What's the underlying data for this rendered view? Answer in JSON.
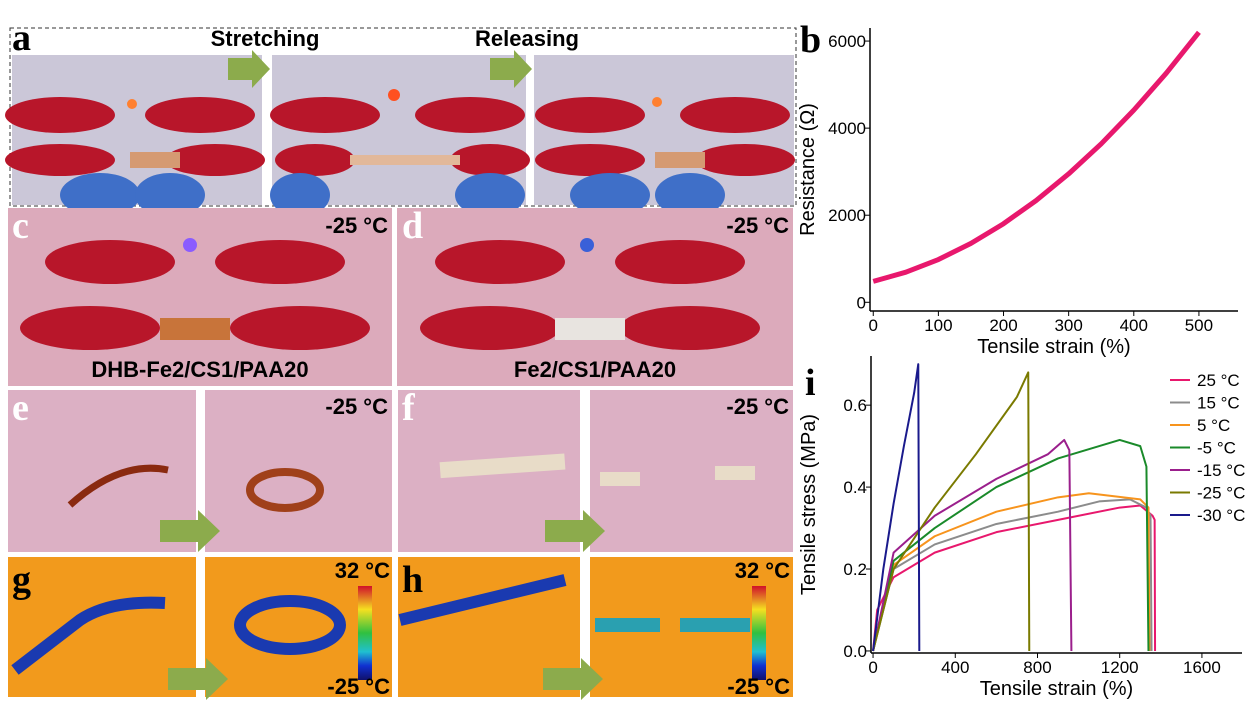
{
  "panels": {
    "a": {
      "label": "a",
      "steps": [
        "Stretching",
        "Releasing"
      ]
    },
    "b": {
      "label": "b"
    },
    "c": {
      "label": "c",
      "temperature": "-25 °C",
      "caption": "DHB-Fe2/CS1/PAA20"
    },
    "d": {
      "label": "d",
      "temperature": "-25 °C",
      "caption": "Fe2/CS1/PAA20"
    },
    "e": {
      "label": "e",
      "temperature": "-25 °C"
    },
    "f": {
      "label": "f",
      "temperature": "-25 °C"
    },
    "g": {
      "label": "g",
      "scale_max": "32 °C",
      "scale_min": "-25 °C"
    },
    "h": {
      "label": "h",
      "scale_max": "32 °C",
      "scale_min": "-25 °C"
    },
    "i": {
      "label": "i"
    }
  },
  "chart_data": [
    {
      "type": "line",
      "x_label": "Tensile strain (%)",
      "y_label": "Resistance (Ω)",
      "xlim": [
        -5,
        560
      ],
      "ylim": [
        -200,
        6300
      ],
      "xticks": [
        0,
        100,
        200,
        300,
        400,
        500
      ],
      "yticks": [
        0,
        2000,
        4000,
        6000
      ],
      "series": [
        {
          "color": "#e8186d",
          "x": [
            0,
            50,
            100,
            150,
            200,
            250,
            300,
            350,
            400,
            450,
            500
          ],
          "values": [
            480,
            691,
            982,
            1353,
            1805,
            2337,
            2950,
            3640,
            4413,
            5265,
            6200
          ]
        }
      ]
    },
    {
      "type": "line",
      "x_label": "Tensile strain (%)",
      "y_label": "Tensile stress (MPa)",
      "xlim": [
        -10,
        1795
      ],
      "ylim": [
        -0.005,
        0.72
      ],
      "xticks": [
        0,
        400,
        800,
        1200,
        1600
      ],
      "yticks": [
        {
          "value": 0,
          "label": "0.0"
        },
        0.2,
        0.4,
        0.6
      ],
      "legend": "upper right",
      "series": [
        {
          "name": "25 °C",
          "color": "#e8186d",
          "x": [
            0,
            20,
            100,
            300,
            600,
            900,
            1200,
            1300,
            1360,
            1370,
            1372
          ],
          "values": [
            0,
            0.1,
            0.18,
            0.24,
            0.29,
            0.32,
            0.35,
            0.355,
            0.33,
            0.32,
            0
          ]
        },
        {
          "name": "15 °C",
          "color": "#8c8c8c",
          "x": [
            0,
            100,
            300,
            600,
            900,
            1100,
            1250,
            1330,
            1350,
            1355
          ],
          "values": [
            0,
            0.2,
            0.26,
            0.31,
            0.34,
            0.365,
            0.37,
            0.35,
            0.33,
            0
          ]
        },
        {
          "name": "5 °C",
          "color": "#f7941d",
          "x": [
            0,
            100,
            300,
            600,
            900,
            1050,
            1300,
            1340,
            1345
          ],
          "values": [
            0,
            0.21,
            0.28,
            0.34,
            0.375,
            0.385,
            0.37,
            0.35,
            0
          ]
        },
        {
          "name": "-5 °C",
          "color": "#1a8a2a",
          "x": [
            0,
            100,
            300,
            600,
            900,
            1200,
            1300,
            1330,
            1340
          ],
          "values": [
            0,
            0.22,
            0.3,
            0.4,
            0.47,
            0.515,
            0.5,
            0.45,
            0
          ]
        },
        {
          "name": "-15 °C",
          "color": "#9b1f8c",
          "x": [
            0,
            100,
            300,
            600,
            850,
            930,
            955,
            965
          ],
          "values": [
            0,
            0.24,
            0.33,
            0.42,
            0.48,
            0.515,
            0.49,
            0
          ]
        },
        {
          "name": "-25 °C",
          "color": "#7a7a00",
          "x": [
            0,
            100,
            300,
            500,
            700,
            755,
            760
          ],
          "values": [
            0,
            0.2,
            0.35,
            0.48,
            0.62,
            0.68,
            0
          ]
        },
        {
          "name": "-30 °C",
          "color": "#1a1a8c",
          "x": [
            0,
            50,
            100,
            150,
            200,
            220,
            225
          ],
          "values": [
            0,
            0.2,
            0.36,
            0.5,
            0.63,
            0.7,
            0
          ]
        }
      ]
    }
  ]
}
